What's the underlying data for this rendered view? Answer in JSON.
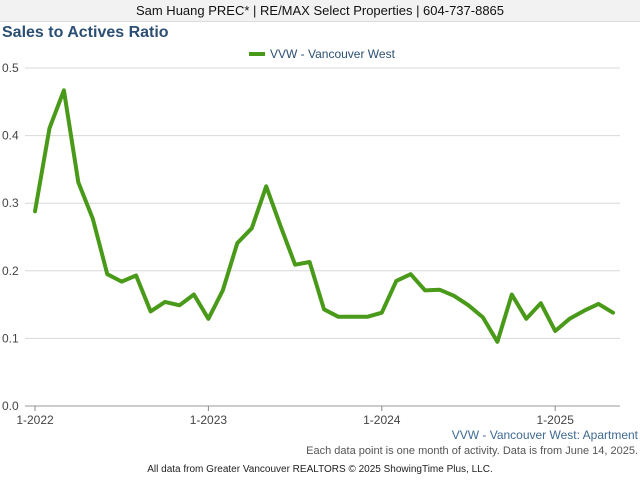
{
  "header": {
    "agent_line": "Sam Huang PREC* | RE/MAX Select Properties | 604-737-8865"
  },
  "chart_data": {
    "type": "line",
    "title": "Sales to Actives Ratio",
    "xlabel": "",
    "ylabel": "",
    "ylim": [
      0,
      0.5
    ],
    "yticks": [
      "0.0",
      "0.1",
      "0.2",
      "0.3",
      "0.4",
      "0.5"
    ],
    "xticks": [
      {
        "label": "1-2022",
        "month_index": 0
      },
      {
        "label": "1-2023",
        "month_index": 12
      },
      {
        "label": "1-2024",
        "month_index": 24
      },
      {
        "label": "1-2025",
        "month_index": 36
      }
    ],
    "grid": "horizontal",
    "legend_position": "top-center",
    "series": [
      {
        "name": "VVW - Vancouver West",
        "color": "#4a9a1a",
        "months": [
          "2022-01",
          "2022-02",
          "2022-03",
          "2022-04",
          "2022-05",
          "2022-06",
          "2022-07",
          "2022-08",
          "2022-09",
          "2022-10",
          "2022-11",
          "2022-12",
          "2023-01",
          "2023-02",
          "2023-03",
          "2023-04",
          "2023-05",
          "2023-06",
          "2023-07",
          "2023-08",
          "2023-09",
          "2023-10",
          "2023-11",
          "2023-12",
          "2024-01",
          "2024-02",
          "2024-03",
          "2024-04",
          "2024-05",
          "2024-06",
          "2024-07",
          "2024-08",
          "2024-09",
          "2024-10",
          "2024-11",
          "2024-12",
          "2025-01",
          "2025-02",
          "2025-03",
          "2025-04",
          "2025-05"
        ],
        "values": [
          0.288,
          0.411,
          0.467,
          0.331,
          0.277,
          0.195,
          0.184,
          0.193,
          0.14,
          0.154,
          0.149,
          0.165,
          0.129,
          0.171,
          0.241,
          0.263,
          0.325,
          0.266,
          0.209,
          0.213,
          0.143,
          0.132,
          0.132,
          0.132,
          0.138,
          0.185,
          0.195,
          0.171,
          0.172,
          0.163,
          0.149,
          0.131,
          0.095,
          0.165,
          0.129,
          0.152,
          0.111,
          0.129,
          0.141,
          0.151,
          0.138
        ]
      }
    ]
  },
  "footer": {
    "subtitle": "VVW - Vancouver West: Apartment",
    "note": "Each data point is one month of activity. Data is from June 14, 2025.",
    "source": "All data from Greater Vancouver REALTORS © 2025 ShowingTime Plus, LLC."
  }
}
